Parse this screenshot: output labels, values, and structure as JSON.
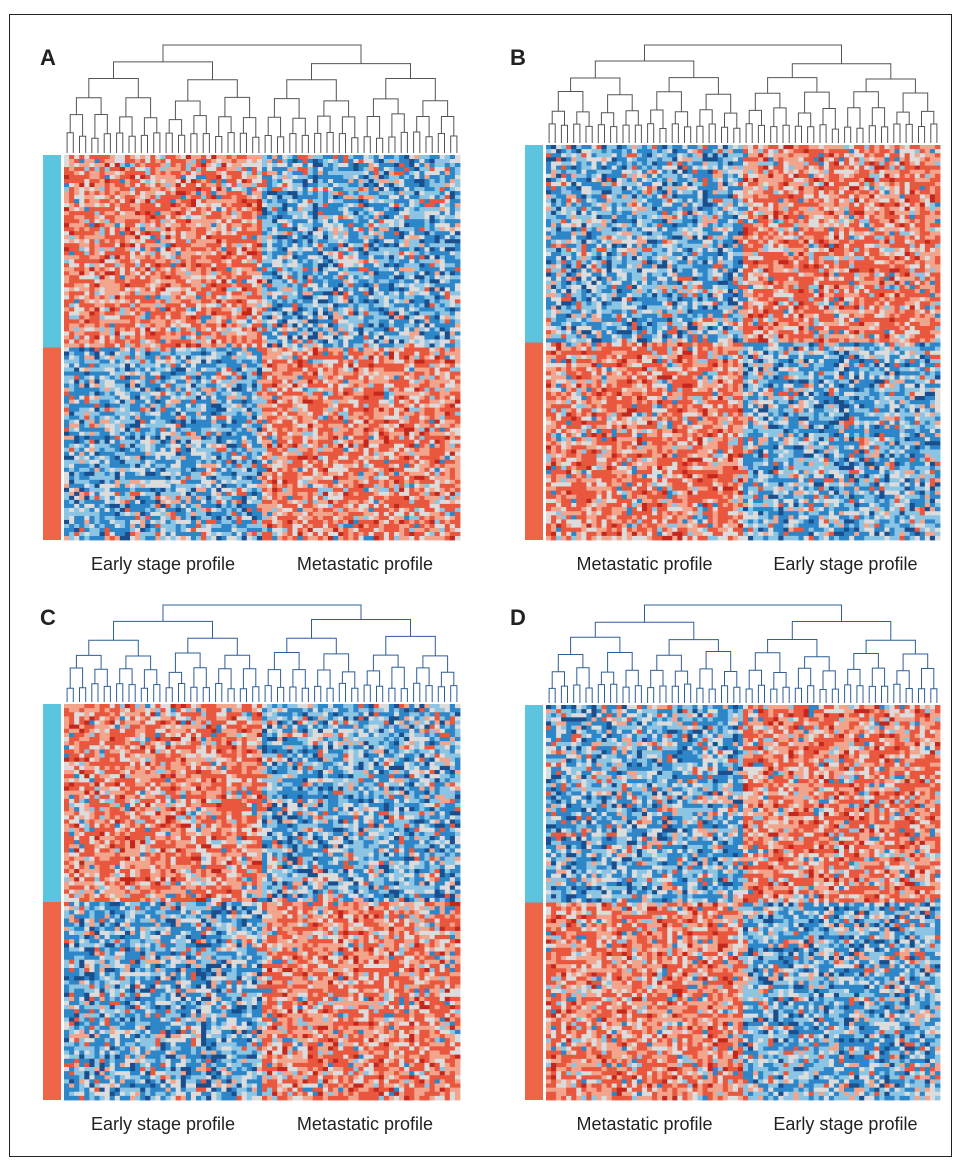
{
  "chart_data": [
    {
      "type": "heatmap",
      "panel_label": "A",
      "column_groups": [
        "Early stage profile",
        "Metastatic profile"
      ],
      "row_groups": [
        {
          "color": "#5bc4df",
          "pattern": [
            "red",
            "blue"
          ]
        },
        {
          "color": "#ee6548",
          "pattern": [
            "blue",
            "red"
          ]
        }
      ],
      "dendrogram_color": "#555555"
    },
    {
      "type": "heatmap",
      "panel_label": "B",
      "column_groups": [
        "Metastatic profile",
        "Early stage profile"
      ],
      "row_groups": [
        {
          "color": "#5bc4df",
          "pattern": [
            "blue",
            "red"
          ]
        },
        {
          "color": "#ee6548",
          "pattern": [
            "red",
            "blue"
          ]
        }
      ],
      "dendrogram_color": "#555555"
    },
    {
      "type": "heatmap",
      "panel_label": "C",
      "column_groups": [
        "Early stage profile",
        "Metastatic profile"
      ],
      "row_groups": [
        {
          "color": "#5bc4df",
          "pattern": [
            "red",
            "blue"
          ]
        },
        {
          "color": "#ee6548",
          "pattern": [
            "blue",
            "red"
          ]
        }
      ],
      "dendrogram_color": "#2f5f9a"
    },
    {
      "type": "heatmap",
      "panel_label": "D",
      "column_groups": [
        "Metastatic profile",
        "Early stage profile"
      ],
      "row_groups": [
        {
          "color": "#5bc4df",
          "pattern": [
            "blue",
            "red"
          ]
        },
        {
          "color": "#ee6548",
          "pattern": [
            "red",
            "blue"
          ]
        }
      ],
      "dendrogram_color": "#2f5f9a"
    }
  ],
  "colors": {
    "red": "#e8573e",
    "light_red": "#f2a58c",
    "neutral": "#dcdcdc",
    "light_blue": "#8cc4e4",
    "blue": "#2d86c8",
    "dark_blue": "#1a4e8c",
    "dark_red": "#c4281c"
  }
}
